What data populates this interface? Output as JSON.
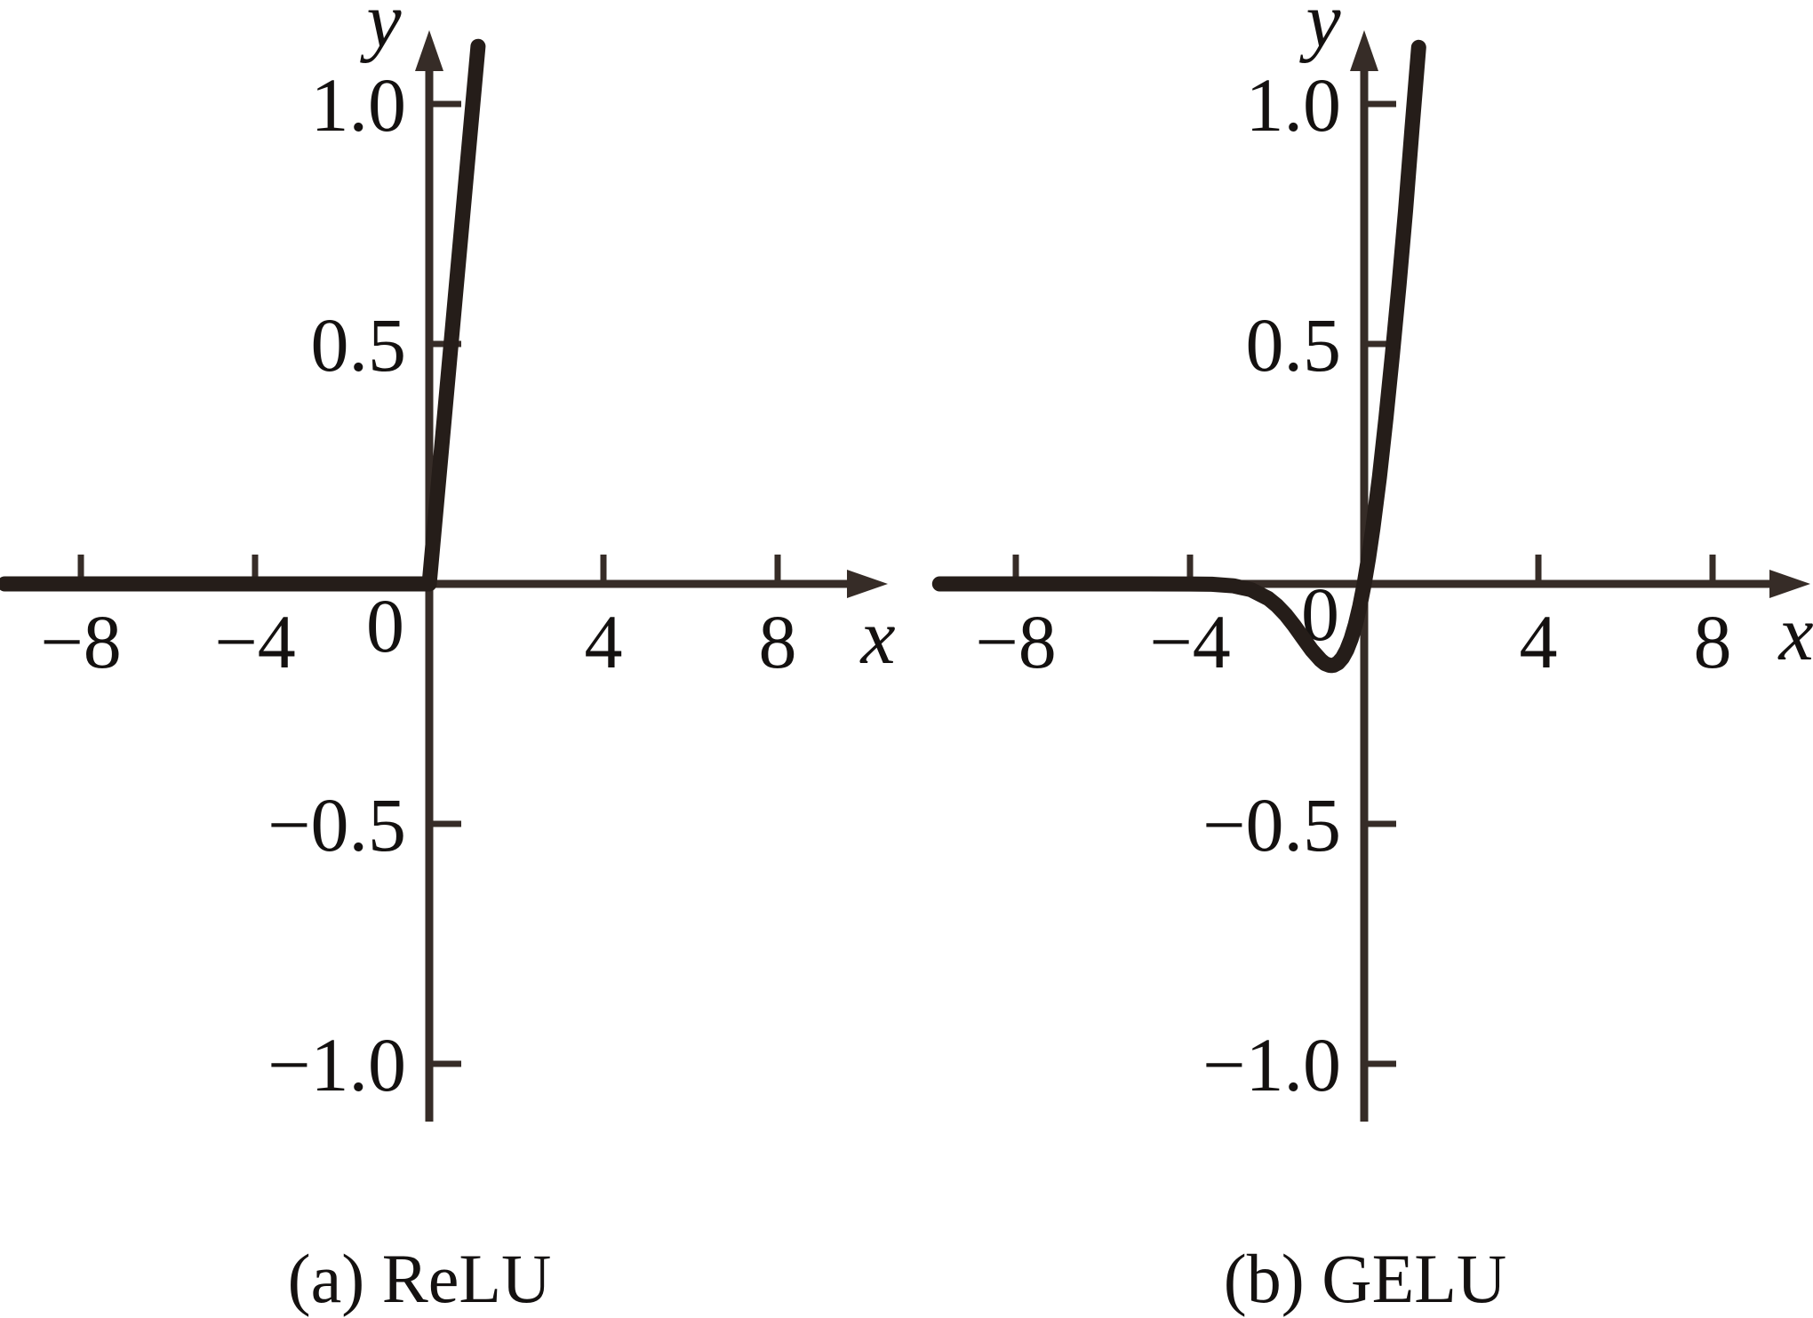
{
  "figure": {
    "background": "#ffffff",
    "curve_color": "#251d19",
    "axis_color": "#362c27",
    "text_color": "#141110"
  },
  "captions": {
    "a": "(a) ReLU",
    "b": "(b) GELU"
  },
  "chart_data": [
    {
      "type": "line",
      "title": "(a) ReLU",
      "xlabel": "x",
      "ylabel": "y",
      "xlim": [
        -9.8,
        10.4
      ],
      "ylim": [
        -1.13,
        1.15
      ],
      "grid": false,
      "legend_position": "none",
      "xticks": [
        {
          "value": -8,
          "label": "−8"
        },
        {
          "value": -4,
          "label": "−4"
        },
        {
          "value": 4,
          "label": "4"
        },
        {
          "value": 8,
          "label": "8"
        }
      ],
      "yticks": [
        {
          "value": 1.0,
          "label": "1.0"
        },
        {
          "value": 0.5,
          "label": "0.5"
        },
        {
          "value": -0.5,
          "label": "−0.5"
        },
        {
          "value": -1.0,
          "label": "−1.0"
        }
      ],
      "origin_label": "0",
      "series": [
        {
          "name": "ReLU",
          "points": [
            [
              -9.75,
              0
            ],
            [
              -8,
              0
            ],
            [
              -6,
              0
            ],
            [
              -4,
              0
            ],
            [
              -2,
              0
            ],
            [
              -1,
              0
            ],
            [
              0,
              0
            ],
            [
              0.3,
              0.3
            ],
            [
              0.6,
              0.6
            ],
            [
              0.9,
              0.9
            ],
            [
              1.12,
              1.12
            ]
          ]
        }
      ]
    },
    {
      "type": "line",
      "title": "(b) GELU",
      "xlabel": "x",
      "ylabel": "y",
      "xlim": [
        -9.8,
        10.3
      ],
      "ylim": [
        -1.13,
        1.15
      ],
      "grid": false,
      "legend_position": "none",
      "xticks": [
        {
          "value": -8,
          "label": "−8"
        },
        {
          "value": -4,
          "label": "−4"
        },
        {
          "value": 4,
          "label": "4"
        },
        {
          "value": 8,
          "label": "8"
        }
      ],
      "yticks": [
        {
          "value": 1.0,
          "label": "1.0"
        },
        {
          "value": 0.5,
          "label": "0.5"
        },
        {
          "value": -0.5,
          "label": "−0.5"
        },
        {
          "value": -1.0,
          "label": "−1.0"
        }
      ],
      "origin_label": "0",
      "series": [
        {
          "name": "GELU",
          "points": [
            [
              -9.75,
              0
            ],
            [
              -8,
              0
            ],
            [
              -6,
              0
            ],
            [
              -5,
              0
            ],
            [
              -4,
              -0.0001
            ],
            [
              -3.5,
              -0.0008
            ],
            [
              -3,
              -0.004
            ],
            [
              -2.6,
              -0.012
            ],
            [
              -2.2,
              -0.0305
            ],
            [
              -2,
              -0.0455
            ],
            [
              -1.8,
              -0.0647
            ],
            [
              -1.6,
              -0.0877
            ],
            [
              -1.4,
              -0.1133
            ],
            [
              -1.2,
              -0.1383
            ],
            [
              -1,
              -0.1587
            ],
            [
              -0.9,
              -0.1662
            ],
            [
              -0.8,
              -0.1695
            ],
            [
              -0.75,
              -0.17
            ],
            [
              -0.7,
              -0.1694
            ],
            [
              -0.6,
              -0.1646
            ],
            [
              -0.5,
              -0.1543
            ],
            [
              -0.4,
              -0.1378
            ],
            [
              -0.3,
              -0.1146
            ],
            [
              -0.2,
              -0.0841
            ],
            [
              -0.1,
              -0.046
            ],
            [
              0,
              0
            ],
            [
              0.1,
              0.054
            ],
            [
              0.2,
              0.1159
            ],
            [
              0.35,
              0.2229
            ],
            [
              0.5,
              0.3457
            ],
            [
              0.65,
              0.4795
            ],
            [
              0.8,
              0.6234
            ],
            [
              0.95,
              0.7771
            ],
            [
              1.1,
              0.9508
            ],
            [
              1.25,
              1.118
            ]
          ]
        }
      ]
    }
  ]
}
